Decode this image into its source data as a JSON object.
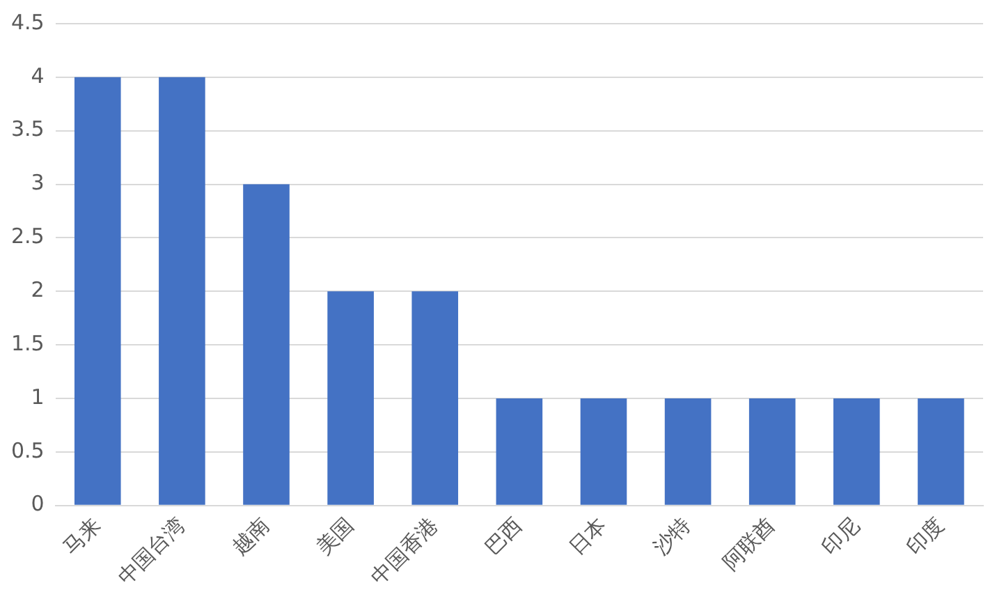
{
  "chart_data": {
    "type": "bar",
    "categories": [
      "马来",
      "中国台湾",
      "越南",
      "美国",
      "中国香港",
      "巴西",
      "日本",
      "沙特",
      "阿联酋",
      "印尼",
      "印度"
    ],
    "values": [
      4,
      4,
      3,
      2,
      2,
      1,
      1,
      1,
      1,
      1,
      1
    ],
    "color": "#4472c4",
    "ylim": [
      0,
      4.5
    ],
    "yticks": [
      0,
      0.5,
      1,
      1.5,
      2,
      2.5,
      3,
      3.5,
      4,
      4.5
    ],
    "grid": "y"
  }
}
